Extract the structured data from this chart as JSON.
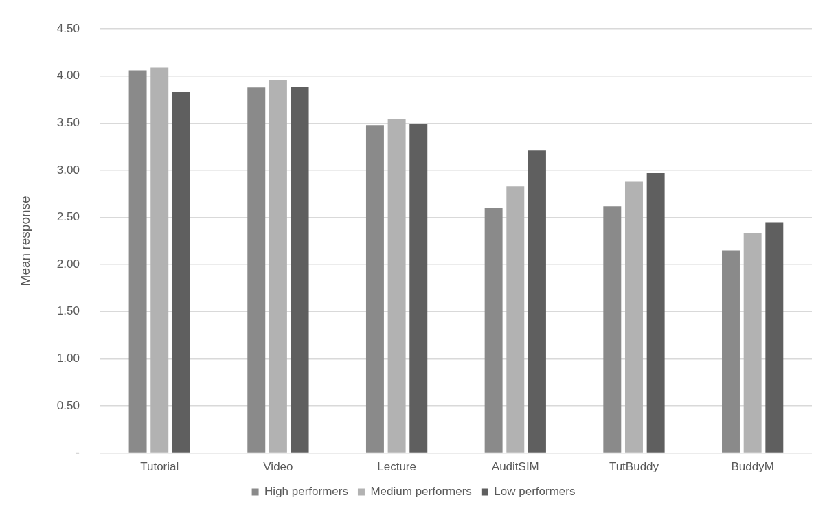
{
  "chart_data": {
    "type": "bar",
    "ylabel": "Mean response",
    "categories": [
      "Tutorial",
      "Video",
      "Lecture",
      "AuditSIM",
      "TutBuddy",
      "BuddyM"
    ],
    "series": [
      {
        "name": "High performers",
        "color": "#8a8a8a",
        "values": [
          4.06,
          3.88,
          3.48,
          2.6,
          2.62,
          2.15
        ]
      },
      {
        "name": "Medium performers",
        "color": "#b2b2b2",
        "values": [
          4.09,
          3.96,
          3.54,
          2.83,
          2.88,
          2.33
        ]
      },
      {
        "name": "Low performers",
        "color": "#5f5f5f",
        "values": [
          3.83,
          3.89,
          3.49,
          3.21,
          2.97,
          2.45
        ]
      }
    ],
    "ylim": [
      0,
      4.5
    ],
    "yticks": [
      {
        "value": 0,
        "label": "-"
      },
      {
        "value": 0.5,
        "label": "0.50"
      },
      {
        "value": 1,
        "label": "1.00"
      },
      {
        "value": 1.5,
        "label": "1.50"
      },
      {
        "value": 2,
        "label": "2.00"
      },
      {
        "value": 2.5,
        "label": "2.50"
      },
      {
        "value": 3,
        "label": "3.00"
      },
      {
        "value": 3.5,
        "label": "3.50"
      },
      {
        "value": 4,
        "label": "4.00"
      },
      {
        "value": 4.5,
        "label": "4.50"
      }
    ],
    "grid": "y",
    "legend": "bottom"
  }
}
